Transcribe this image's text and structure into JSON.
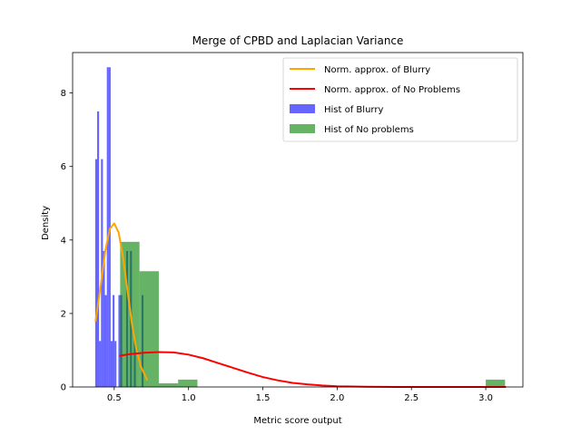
{
  "chart_data": {
    "type": "bar",
    "title": "Merge of CPBD and Laplacian Variance",
    "xlabel": "Metric score output",
    "ylabel": "Density",
    "xlim": [
      0.22,
      3.25
    ],
    "ylim": [
      0,
      9.1
    ],
    "xticks": [
      0.5,
      1.0,
      1.5,
      2.0,
      2.5,
      3.0
    ],
    "xtick_labels": [
      "0.5",
      "1.0",
      "1.5",
      "2.0",
      "2.5",
      "3.0"
    ],
    "yticks": [
      0,
      2,
      4,
      6,
      8
    ],
    "ytick_labels": [
      "0",
      "2",
      "4",
      "6",
      "8"
    ],
    "legend_position": "top-right",
    "series": [
      {
        "name": "Norm. approx. of Blurry",
        "kind": "line",
        "color": "#ffa500",
        "x": [
          0.375,
          0.41,
          0.44,
          0.47,
          0.5,
          0.53,
          0.56,
          0.59,
          0.62,
          0.65,
          0.68,
          0.72
        ],
        "y": [
          1.8,
          2.8,
          3.7,
          4.3,
          4.45,
          4.2,
          3.5,
          2.6,
          1.7,
          1.0,
          0.55,
          0.2
        ]
      },
      {
        "name": "Norm. approx. of No Problems",
        "kind": "line",
        "color": "#ff0000",
        "x": [
          0.54,
          0.6,
          0.7,
          0.8,
          0.9,
          1.0,
          1.1,
          1.2,
          1.3,
          1.4,
          1.5,
          1.6,
          1.7,
          1.8,
          1.9,
          2.0,
          2.2,
          2.4,
          2.6,
          2.8,
          3.0,
          3.13
        ],
        "y": [
          0.85,
          0.89,
          0.93,
          0.95,
          0.94,
          0.88,
          0.78,
          0.65,
          0.52,
          0.39,
          0.27,
          0.18,
          0.11,
          0.07,
          0.04,
          0.02,
          0.005,
          0.001,
          0.0,
          0.0,
          0.0,
          0.0
        ]
      },
      {
        "name": "Hist of Blurry",
        "kind": "hist",
        "color": "#0000ff",
        "opacity": 0.6,
        "bins": [
          {
            "x0": 0.372,
            "x1": 0.385,
            "y": 6.2
          },
          {
            "x0": 0.385,
            "x1": 0.398,
            "y": 7.5
          },
          {
            "x0": 0.398,
            "x1": 0.411,
            "y": 1.25
          },
          {
            "x0": 0.411,
            "x1": 0.424,
            "y": 6.2
          },
          {
            "x0": 0.424,
            "x1": 0.437,
            "y": 3.7
          },
          {
            "x0": 0.437,
            "x1": 0.45,
            "y": 2.5
          },
          {
            "x0": 0.45,
            "x1": 0.463,
            "y": 8.7
          },
          {
            "x0": 0.463,
            "x1": 0.476,
            "y": 8.7
          },
          {
            "x0": 0.476,
            "x1": 0.489,
            "y": 1.25
          },
          {
            "x0": 0.489,
            "x1": 0.502,
            "y": 2.5
          },
          {
            "x0": 0.502,
            "x1": 0.515,
            "y": 1.25
          },
          {
            "x0": 0.528,
            "x1": 0.541,
            "y": 2.5
          },
          {
            "x0": 0.541,
            "x1": 0.554,
            "y": 2.5
          },
          {
            "x0": 0.58,
            "x1": 0.593,
            "y": 3.7
          },
          {
            "x0": 0.606,
            "x1": 0.619,
            "y": 3.7
          },
          {
            "x0": 0.632,
            "x1": 0.645,
            "y": 1.25
          },
          {
            "x0": 0.684,
            "x1": 0.697,
            "y": 2.5
          }
        ]
      },
      {
        "name": "Hist of No problems",
        "kind": "hist",
        "color": "#008000",
        "opacity": 0.6,
        "bins": [
          {
            "x0": 0.54,
            "x1": 0.67,
            "y": 3.95
          },
          {
            "x0": 0.67,
            "x1": 0.8,
            "y": 3.15
          },
          {
            "x0": 0.8,
            "x1": 0.93,
            "y": 0.1
          },
          {
            "x0": 0.93,
            "x1": 1.06,
            "y": 0.2
          },
          {
            "x0": 3.0,
            "x1": 3.13,
            "y": 0.2
          }
        ]
      }
    ]
  }
}
